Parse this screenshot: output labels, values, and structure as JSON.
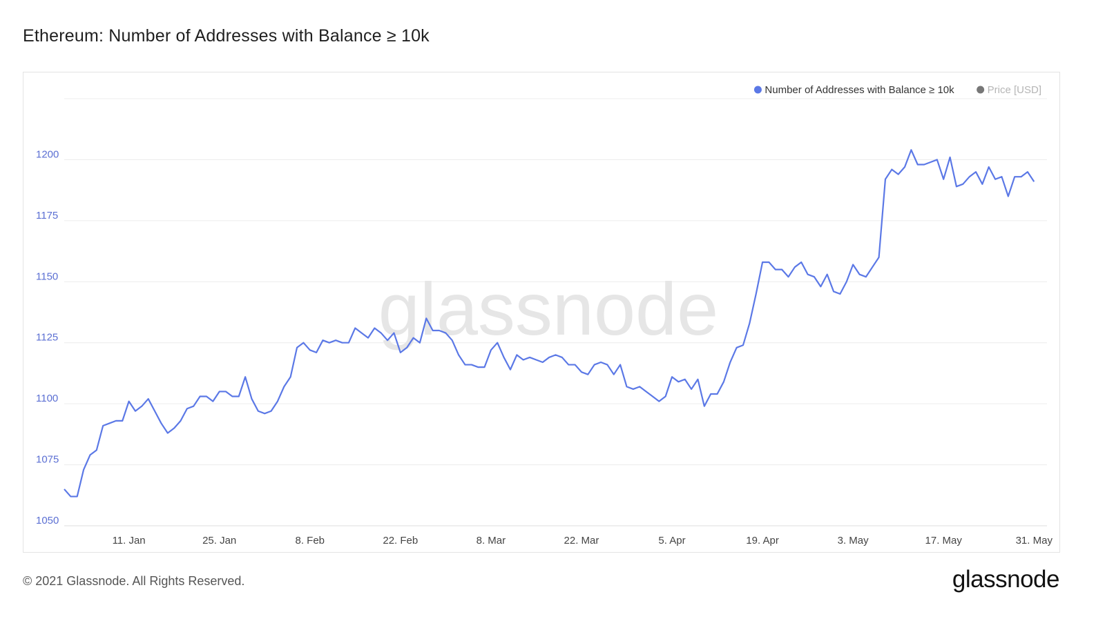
{
  "title": "Ethereum: Number of Addresses with Balance ≥ 10k",
  "footer": {
    "copyright": "© 2021 Glassnode. All Rights Reserved.",
    "logo_text": "glassnode"
  },
  "watermark": "glassnode",
  "colors": {
    "series": "#5b78e6",
    "price": "#777777",
    "grid": "#ececec",
    "axis_text": "#5b6fd3",
    "x_text": "#444444",
    "watermark": "#e6e6e6"
  },
  "chart_data": {
    "type": "line",
    "title": "Ethereum: Number of Addresses with Balance ≥ 10k",
    "legend": [
      {
        "name": "Number of Addresses with Balance ≥ 10k",
        "color": "#5b78e6"
      },
      {
        "name": "Price [USD]",
        "color": "#777777",
        "disabled": true
      }
    ],
    "legend_placement": "top-right",
    "grid": true,
    "ylim": [
      1050,
      1225
    ],
    "y_ticks": [
      1050,
      1075,
      1100,
      1125,
      1150,
      1175,
      1200
    ],
    "x_range": [
      "2021-01-01",
      "2021-06-02"
    ],
    "x_ticks": [
      {
        "date": "2021-01-11",
        "label": "11. Jan"
      },
      {
        "date": "2021-01-25",
        "label": "25. Jan"
      },
      {
        "date": "2021-02-08",
        "label": "8. Feb"
      },
      {
        "date": "2021-02-22",
        "label": "22. Feb"
      },
      {
        "date": "2021-03-08",
        "label": "8. Mar"
      },
      {
        "date": "2021-03-22",
        "label": "22. Mar"
      },
      {
        "date": "2021-04-05",
        "label": "5. Apr"
      },
      {
        "date": "2021-04-19",
        "label": "19. Apr"
      },
      {
        "date": "2021-05-03",
        "label": "3. May"
      },
      {
        "date": "2021-05-17",
        "label": "17. May"
      },
      {
        "date": "2021-05-31",
        "label": "31. May"
      }
    ],
    "series": [
      {
        "name": "Number of Addresses with Balance ≥ 10k",
        "start_date": "2021-01-01",
        "values": [
          1065,
          1062,
          1062,
          1073,
          1079,
          1081,
          1091,
          1092,
          1093,
          1093,
          1101,
          1097,
          1099,
          1102,
          1097,
          1092,
          1088,
          1090,
          1093,
          1098,
          1099,
          1103,
          1103,
          1101,
          1105,
          1105,
          1103,
          1103,
          1111,
          1102,
          1097,
          1096,
          1097,
          1101,
          1107,
          1111,
          1123,
          1125,
          1122,
          1121,
          1126,
          1125,
          1126,
          1125,
          1125,
          1131,
          1129,
          1127,
          1131,
          1129,
          1126,
          1129,
          1121,
          1123,
          1127,
          1125,
          1135,
          1130,
          1130,
          1129,
          1126,
          1120,
          1116,
          1116,
          1115,
          1115,
          1122,
          1125,
          1119,
          1114,
          1120,
          1118,
          1119,
          1118,
          1117,
          1119,
          1120,
          1119,
          1116,
          1116,
          1113,
          1112,
          1116,
          1117,
          1116,
          1112,
          1116,
          1107,
          1106,
          1107,
          1105,
          1103,
          1101,
          1103,
          1111,
          1109,
          1110,
          1106,
          1110,
          1099,
          1104,
          1104,
          1109,
          1117,
          1123,
          1124,
          1133,
          1145,
          1158,
          1158,
          1155,
          1155,
          1152,
          1156,
          1158,
          1153,
          1152,
          1148,
          1153,
          1146,
          1145,
          1150,
          1157,
          1153,
          1152,
          1156,
          1160,
          1192,
          1196,
          1194,
          1197,
          1204,
          1198,
          1198,
          1199,
          1200,
          1192,
          1201,
          1189,
          1190,
          1193,
          1195,
          1190,
          1197,
          1192,
          1193,
          1185,
          1193,
          1193,
          1195,
          1191
        ]
      }
    ]
  }
}
